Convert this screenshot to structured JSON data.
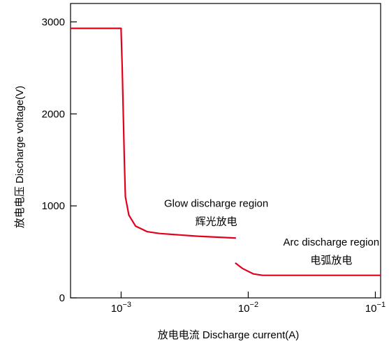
{
  "chart_data": {
    "type": "line",
    "title": "",
    "xlabel": "放电电流  Discharge current(A)",
    "ylabel": "放电电压    Discharge voltage(V)",
    "x_scale": "log",
    "xlim": [
      0.0004,
      0.11
    ],
    "ylim": [
      0,
      3200
    ],
    "x_ticks": [
      {
        "value": 0.001,
        "base": "10",
        "exp": "−3"
      },
      {
        "value": 0.01,
        "base": "10",
        "exp": "−2"
      },
      {
        "value": 0.1,
        "base": "10",
        "exp": "−1"
      }
    ],
    "y_ticks": [
      {
        "value": 0,
        "label": "0"
      },
      {
        "value": 1000,
        "label": "1000"
      },
      {
        "value": 2000,
        "label": "2000"
      },
      {
        "value": 3000,
        "label": "3000"
      }
    ],
    "grid": false,
    "series": [
      {
        "color": "#e3001b",
        "points": [
          [
            0.0004,
            2930
          ],
          [
            0.001,
            2930
          ],
          [
            0.001,
            2900
          ],
          [
            0.00102,
            2500
          ],
          [
            0.00104,
            2000
          ],
          [
            0.00106,
            1500
          ],
          [
            0.00108,
            1100
          ],
          [
            0.00115,
            900
          ],
          [
            0.0013,
            780
          ],
          [
            0.0016,
            720
          ],
          [
            0.002,
            700
          ],
          [
            0.004,
            670
          ],
          [
            0.008,
            650
          ]
        ]
      },
      {
        "color": "#e3001b",
        "points": [
          [
            0.0079,
            380
          ],
          [
            0.009,
            320
          ],
          [
            0.011,
            260
          ],
          [
            0.013,
            245
          ],
          [
            0.02,
            245
          ],
          [
            0.05,
            245
          ],
          [
            0.11,
            245
          ]
        ]
      }
    ],
    "annotations": [
      {
        "id": "glow",
        "line1": "Glow discharge region",
        "line2": "辉光放电",
        "anchor_x": 0.0056,
        "anchor_y": 990
      },
      {
        "id": "arc",
        "line1": "Arc discharge region",
        "line2": "电弧放电",
        "anchor_x": 0.045,
        "anchor_y": 570
      }
    ]
  }
}
